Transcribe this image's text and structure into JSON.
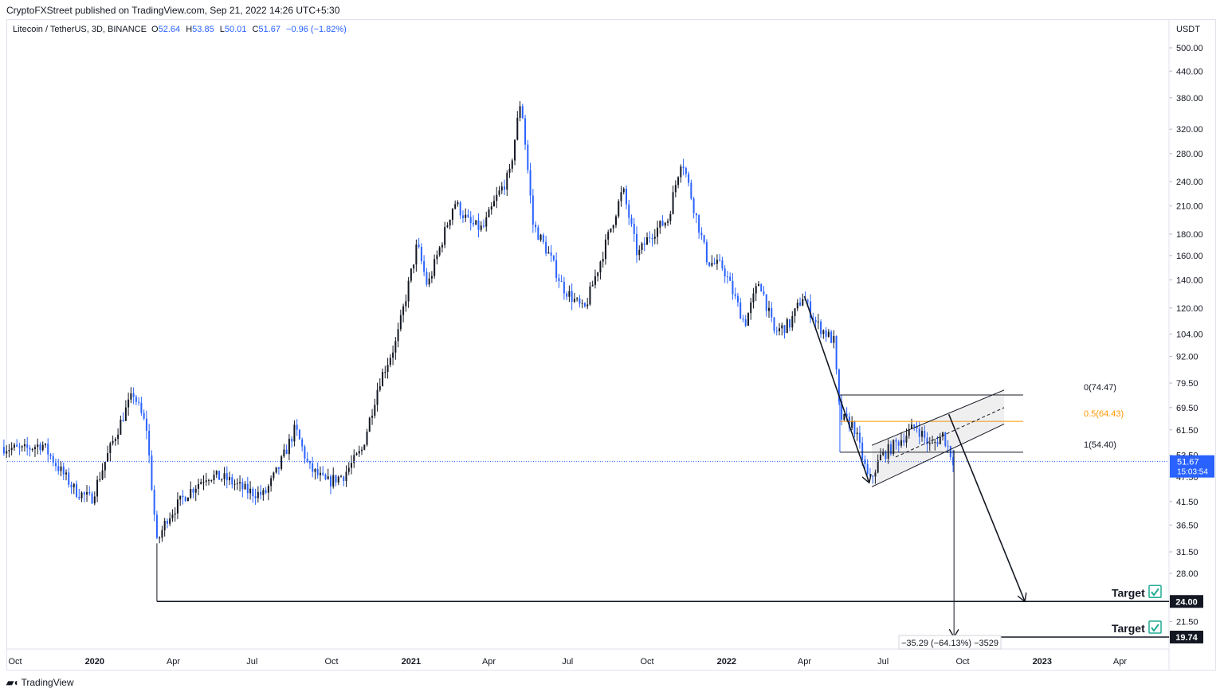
{
  "publisher_line": "CryptoFXStreet published on TradingView.com, Sep 21, 2022 14:26 UTC+5:30",
  "legend": {
    "symbol": "Litecoin / TetherUS, 3D, BINANCE",
    "open_label": "O",
    "open": "52.64",
    "high_label": "H",
    "high": "53.85",
    "low_label": "L",
    "low": "50.01",
    "close_label": "C",
    "close": "51.67",
    "change": "−0.96 (−1.82%)"
  },
  "footer": {
    "logo_text": "TradingView",
    "logo_icon": "tradingview-logo-icon"
  },
  "colors": {
    "up": "#131722",
    "down": "#2962ff",
    "fib_mid": "#ff9800",
    "price_tag": "#2962ff",
    "target_check": "#22ab94"
  },
  "chart_data": {
    "type": "candlestick",
    "scale": "log",
    "currency_label": "USDT",
    "y_ticks": [
      "500.00",
      "440.00",
      "380.00",
      "320.00",
      "280.00",
      "240.00",
      "210.00",
      "180.00",
      "160.00",
      "140.00",
      "120.00",
      "104.00",
      "92.00",
      "79.50",
      "69.50",
      "61.50",
      "53.50",
      "47.50",
      "41.50",
      "36.50",
      "31.50",
      "28.00",
      "24.00",
      "21.50",
      "19.74"
    ],
    "x_ticks": [
      {
        "label": "Oct",
        "date": "2019-10-01",
        "bold": false
      },
      {
        "label": "2020",
        "date": "2020-01-01",
        "bold": true
      },
      {
        "label": "Apr",
        "date": "2020-04-01",
        "bold": false
      },
      {
        "label": "Jul",
        "date": "2020-07-01",
        "bold": false
      },
      {
        "label": "Oct",
        "date": "2020-10-01",
        "bold": false
      },
      {
        "label": "2021",
        "date": "2021-01-01",
        "bold": true
      },
      {
        "label": "Apr",
        "date": "2021-04-01",
        "bold": false
      },
      {
        "label": "Jul",
        "date": "2021-07-01",
        "bold": false
      },
      {
        "label": "Oct",
        "date": "2021-10-01",
        "bold": false
      },
      {
        "label": "2022",
        "date": "2022-01-01",
        "bold": true
      },
      {
        "label": "Apr",
        "date": "2022-04-01",
        "bold": false
      },
      {
        "label": "Jul",
        "date": "2022-07-01",
        "bold": false
      },
      {
        "label": "Oct",
        "date": "2022-10-01",
        "bold": false
      },
      {
        "label": "2023",
        "date": "2023-01-01",
        "bold": true
      },
      {
        "label": "Apr",
        "date": "2023-04-01",
        "bold": false
      }
    ],
    "close_path": [
      [
        "2019-09-18",
        56
      ],
      [
        "2019-10-10",
        55
      ],
      [
        "2019-11-01",
        57
      ],
      [
        "2019-11-20",
        50
      ],
      [
        "2019-12-10",
        44
      ],
      [
        "2019-12-28",
        42
      ],
      [
        "2020-01-15",
        53
      ],
      [
        "2020-02-05",
        68
      ],
      [
        "2020-02-15",
        75
      ],
      [
        "2020-03-01",
        62
      ],
      [
        "2020-03-13",
        33
      ],
      [
        "2020-03-25",
        38
      ],
      [
        "2020-04-15",
        43
      ],
      [
        "2020-05-10",
        48
      ],
      [
        "2020-06-01",
        47
      ],
      [
        "2020-06-25",
        44
      ],
      [
        "2020-07-15",
        43
      ],
      [
        "2020-08-01",
        50
      ],
      [
        "2020-08-20",
        62
      ],
      [
        "2020-09-05",
        50
      ],
      [
        "2020-09-25",
        46
      ],
      [
        "2020-10-15",
        48
      ],
      [
        "2020-11-05",
        55
      ],
      [
        "2020-11-25",
        80
      ],
      [
        "2020-12-15",
        100
      ],
      [
        "2021-01-08",
        170
      ],
      [
        "2021-01-20",
        135
      ],
      [
        "2021-02-20",
        215
      ],
      [
        "2021-03-10",
        190
      ],
      [
        "2021-03-25",
        185
      ],
      [
        "2021-04-10",
        220
      ],
      [
        "2021-04-25",
        250
      ],
      [
        "2021-05-08",
        380
      ],
      [
        "2021-05-22",
        190
      ],
      [
        "2021-06-10",
        160
      ],
      [
        "2021-06-25",
        135
      ],
      [
        "2021-07-20",
        118
      ],
      [
        "2021-08-10",
        160
      ],
      [
        "2021-09-03",
        230
      ],
      [
        "2021-09-20",
        160
      ],
      [
        "2021-10-05",
        180
      ],
      [
        "2021-10-25",
        195
      ],
      [
        "2021-11-10",
        275
      ],
      [
        "2021-11-25",
        205
      ],
      [
        "2021-12-10",
        155
      ],
      [
        "2021-12-28",
        150
      ],
      [
        "2022-01-22",
        110
      ],
      [
        "2022-02-08",
        140
      ],
      [
        "2022-02-25",
        105
      ],
      [
        "2022-03-15",
        110
      ],
      [
        "2022-03-30",
        128
      ],
      [
        "2022-04-15",
        110
      ],
      [
        "2022-05-05",
        100
      ],
      [
        "2022-05-12",
        66
      ],
      [
        "2022-05-28",
        63
      ],
      [
        "2022-06-15",
        46
      ],
      [
        "2022-06-28",
        53
      ],
      [
        "2022-07-20",
        58
      ],
      [
        "2022-08-08",
        63
      ],
      [
        "2022-08-25",
        56
      ],
      [
        "2022-09-08",
        60
      ],
      [
        "2022-09-21",
        51.67
      ]
    ],
    "last_price": "51.67",
    "countdown": "15:03:54",
    "fibonacci": [
      {
        "label": "0(74.47)",
        "value": 74.47
      },
      {
        "label": "0.5(64.43)",
        "value": 64.43
      },
      {
        "label": "1(54.40)",
        "value": 54.4
      }
    ],
    "targets": [
      {
        "label": "Target",
        "price": "24.00",
        "value": 24.0
      },
      {
        "label": "Target",
        "price": "19.74",
        "value": 19.74
      }
    ],
    "measure_label": "−35.29 (−64.13%) −3529"
  }
}
